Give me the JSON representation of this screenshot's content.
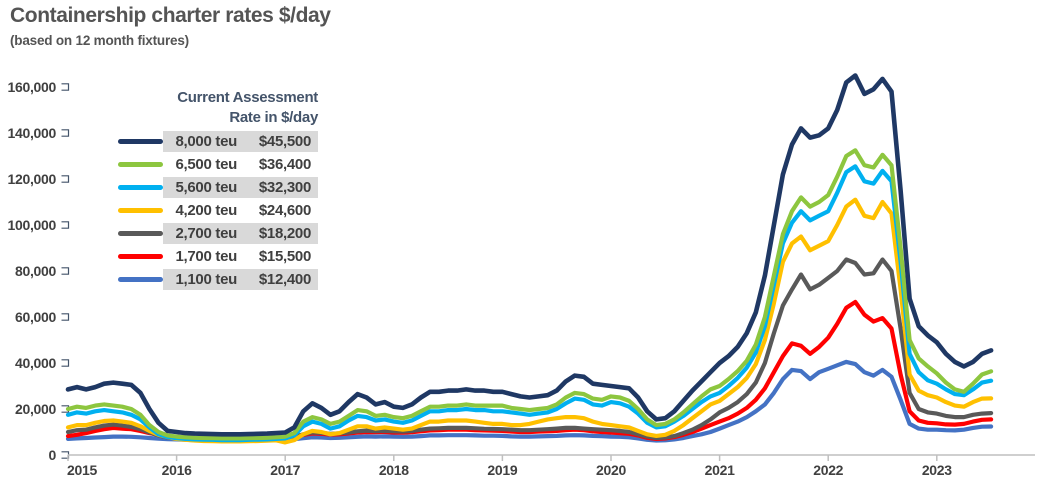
{
  "header": {
    "title": "Containership charter rates $/day",
    "subtitle": "(based on 12 month fixtures)"
  },
  "legend": {
    "header_line1": "Current Assessment",
    "header_line2": "Rate in $/day",
    "rows": [
      {
        "label": "8,000 teu",
        "value": "$45,500",
        "color": "#1F3864",
        "striped": true
      },
      {
        "label": "6,500 teu",
        "value": "$36,400",
        "color": "#8DC63F",
        "striped": false
      },
      {
        "label": "5,600 teu",
        "value": "$32,300",
        "color": "#00B0F0",
        "striped": true
      },
      {
        "label": "4,200 teu",
        "value": "$24,600",
        "color": "#FFC000",
        "striped": false
      },
      {
        "label": "2,700 teu",
        "value": "$18,200",
        "color": "#595959",
        "striped": true
      },
      {
        "label": "1,700 teu",
        "value": "$15,500",
        "color": "#FF0000",
        "striped": false
      },
      {
        "label": "1,100 teu",
        "value": "$12,400",
        "color": "#4472C4",
        "striped": true
      }
    ]
  },
  "colors": {
    "axis_line": "#BFBFBF",
    "tick_label": "#404040",
    "tick_bracket": "#44546A",
    "title_text": "#545454",
    "stripe": "#D9D9D9"
  },
  "chart_data": {
    "type": "line",
    "title": "Containership charter rates $/day",
    "subtitle": "(based on 12 month fixtures)",
    "x_unit": "month",
    "x_start_year": 2015,
    "x_end": "2023-07",
    "x_tick_labels": [
      "2015",
      "2016",
      "2017",
      "2018",
      "2019",
      "2020",
      "2021",
      "2022",
      "2023"
    ],
    "ylim": [
      0,
      160000
    ],
    "y_tick_step": 20000,
    "y_tick_labels": [
      "0",
      "20,000",
      "40,000",
      "60,000",
      "80,000",
      "100,000",
      "120,000",
      "140,000",
      "160,000"
    ],
    "grid": false,
    "legend_position": "top-left-inside",
    "series": [
      {
        "name": "8,000 teu",
        "current_assessment": 45500,
        "color": "#1F3864",
        "values": [
          28500,
          29500,
          28500,
          29500,
          31000,
          31500,
          31000,
          30500,
          27000,
          20000,
          14000,
          10500,
          10000,
          9500,
          9300,
          9200,
          9100,
          9000,
          9000,
          9000,
          9100,
          9200,
          9300,
          9500,
          9800,
          12000,
          19000,
          22500,
          20500,
          17500,
          19000,
          23000,
          26500,
          25000,
          22000,
          23000,
          21000,
          20500,
          22000,
          25000,
          27500,
          27500,
          28000,
          28000,
          28500,
          28000,
          28000,
          27500,
          27500,
          26500,
          25500,
          25000,
          25500,
          26000,
          28000,
          32000,
          34500,
          34000,
          31000,
          30500,
          30000,
          29500,
          29000,
          25000,
          19000,
          15500,
          16000,
          19000,
          23500,
          28000,
          32000,
          36000,
          40000,
          43000,
          47000,
          53000,
          62000,
          78000,
          100000,
          122000,
          135000,
          142000,
          138000,
          139000,
          142000,
          150000,
          162000,
          165000,
          157000,
          159000,
          163500,
          158000,
          115000,
          68000,
          56000,
          52000,
          49000,
          44000,
          40500,
          38500,
          40500,
          44000,
          45500
        ]
      },
      {
        "name": "6,500 teu",
        "current_assessment": 36400,
        "color": "#8DC63F",
        "values": [
          20000,
          21000,
          20500,
          21500,
          22000,
          21500,
          21000,
          20000,
          17500,
          13000,
          10000,
          8500,
          8000,
          7700,
          7500,
          7400,
          7300,
          7200,
          7200,
          7200,
          7300,
          7400,
          7500,
          7700,
          8000,
          9500,
          14500,
          16500,
          15500,
          13500,
          14500,
          17000,
          19500,
          19000,
          17000,
          17500,
          16500,
          16000,
          17000,
          19000,
          21000,
          21000,
          21500,
          21500,
          22000,
          21500,
          21500,
          21500,
          21500,
          20500,
          20000,
          19500,
          20000,
          20500,
          22000,
          25000,
          27000,
          26500,
          24500,
          24000,
          25500,
          25000,
          23500,
          20000,
          15500,
          13000,
          13500,
          15500,
          18500,
          22000,
          25500,
          28500,
          30000,
          33000,
          36500,
          41000,
          48000,
          60000,
          78000,
          96000,
          106000,
          112000,
          108000,
          110000,
          113000,
          121000,
          130000,
          132500,
          126000,
          125000,
          130500,
          126000,
          90000,
          50000,
          42000,
          38500,
          35500,
          31500,
          28500,
          27500,
          31000,
          35000,
          36400
        ]
      },
      {
        "name": "5,600 teu",
        "current_assessment": 32300,
        "color": "#00B0F0",
        "values": [
          17500,
          18500,
          18000,
          19000,
          19500,
          19000,
          18500,
          17500,
          15500,
          12000,
          9000,
          7800,
          7300,
          7000,
          6800,
          6700,
          6600,
          6500,
          6500,
          6500,
          6600,
          6700,
          6800,
          7000,
          7200,
          8500,
          12500,
          14500,
          13500,
          11500,
          12500,
          15000,
          17000,
          16500,
          15000,
          15500,
          14500,
          14000,
          15000,
          17000,
          19000,
          19000,
          19500,
          19500,
          20000,
          19500,
          19500,
          19000,
          19000,
          18500,
          18000,
          17500,
          18000,
          18500,
          20000,
          22500,
          24500,
          24000,
          22000,
          21500,
          23000,
          22500,
          21000,
          18000,
          14000,
          12000,
          12500,
          14500,
          17000,
          20000,
          23000,
          25500,
          27000,
          30000,
          33500,
          38000,
          44500,
          56000,
          74000,
          92000,
          101000,
          106000,
          102000,
          104000,
          106000,
          114000,
          123000,
          125500,
          119000,
          118000,
          123500,
          119000,
          84000,
          44000,
          36000,
          32500,
          31000,
          28500,
          26500,
          26000,
          28500,
          31500,
          32300
        ]
      },
      {
        "name": "4,200 teu",
        "current_assessment": 24600,
        "color": "#FFC000",
        "values": [
          12000,
          13000,
          13000,
          14000,
          14800,
          15000,
          14500,
          14000,
          12500,
          10500,
          8800,
          7800,
          7000,
          6600,
          6300,
          6100,
          6000,
          5900,
          5900,
          5900,
          6000,
          6100,
          6200,
          6400,
          5500,
          6500,
          9000,
          10500,
          10000,
          9000,
          9500,
          11000,
          12500,
          12500,
          11500,
          12000,
          11500,
          11000,
          11500,
          13000,
          14500,
          14500,
          15000,
          15000,
          15000,
          14500,
          14000,
          13500,
          13500,
          13000,
          13000,
          13500,
          14500,
          15500,
          16000,
          16500,
          16500,
          16000,
          14500,
          13500,
          13000,
          12500,
          12000,
          10500,
          9000,
          8300,
          8800,
          10500,
          13000,
          16000,
          19000,
          22000,
          23500,
          26500,
          29500,
          33500,
          39500,
          50000,
          66000,
          84000,
          92000,
          95000,
          89000,
          91000,
          93000,
          100000,
          108000,
          111000,
          104000,
          103000,
          110000,
          105000,
          72000,
          35000,
          28000,
          26000,
          25000,
          23000,
          21500,
          21000,
          23000,
          24500,
          24600
        ]
      },
      {
        "name": "2,700 teu",
        "current_assessment": 18200,
        "color": "#595959",
        "values": [
          10000,
          10800,
          11000,
          12000,
          12800,
          13200,
          12800,
          12200,
          11200,
          9800,
          8500,
          7600,
          7200,
          7000,
          6800,
          6700,
          6600,
          6500,
          6500,
          6500,
          6600,
          6700,
          6800,
          7000,
          7300,
          7800,
          9000,
          9800,
          9600,
          9200,
          9400,
          9800,
          10300,
          10600,
          10400,
          10500,
          10300,
          10200,
          10500,
          11000,
          11500,
          11600,
          11800,
          11800,
          11800,
          11600,
          11400,
          11300,
          11200,
          11000,
          10800,
          10800,
          11000,
          11200,
          11500,
          11800,
          11800,
          11500,
          11200,
          11000,
          10800,
          10500,
          10000,
          9000,
          8000,
          7400,
          7600,
          8200,
          9500,
          11000,
          13000,
          15500,
          18500,
          20500,
          23000,
          26500,
          31500,
          40000,
          53000,
          65000,
          72000,
          78500,
          72000,
          74000,
          77000,
          80000,
          85000,
          83500,
          78500,
          79000,
          85000,
          80000,
          55000,
          27000,
          20000,
          18500,
          18000,
          17000,
          16500,
          16500,
          17500,
          18000,
          18200
        ]
      },
      {
        "name": "1,700 teu",
        "current_assessment": 15500,
        "color": "#FF0000",
        "values": [
          8200,
          8800,
          9500,
          10500,
          11200,
          11800,
          11500,
          11200,
          10500,
          9500,
          8800,
          8200,
          7900,
          7600,
          7400,
          7300,
          7200,
          7200,
          7200,
          7200,
          7300,
          7300,
          7400,
          7500,
          7700,
          8000,
          8800,
          9400,
          9200,
          8900,
          9000,
          9400,
          9800,
          10000,
          9900,
          10000,
          9800,
          9700,
          9900,
          10300,
          10700,
          10800,
          11000,
          11000,
          11000,
          10800,
          10700,
          10600,
          10500,
          10200,
          10000,
          10000,
          10200,
          10300,
          10500,
          10800,
          11000,
          10800,
          10300,
          10000,
          9800,
          9500,
          9200,
          8500,
          7500,
          7000,
          7200,
          7800,
          8800,
          10000,
          11500,
          13000,
          14500,
          16000,
          18000,
          20500,
          24000,
          29000,
          36000,
          43000,
          48500,
          47500,
          44000,
          47000,
          51000,
          57000,
          64000,
          66500,
          61000,
          58000,
          59500,
          55000,
          35000,
          19000,
          15000,
          14000,
          13800,
          13300,
          13200,
          13500,
          14500,
          15300,
          15500
        ]
      },
      {
        "name": "1,100 teu",
        "current_assessment": 12400,
        "color": "#4472C4",
        "values": [
          7000,
          7200,
          7400,
          7600,
          7800,
          8000,
          8000,
          7900,
          7700,
          7400,
          7100,
          6900,
          6800,
          6600,
          6500,
          6400,
          6400,
          6300,
          6300,
          6300,
          6400,
          6400,
          6500,
          6600,
          6700,
          6900,
          7300,
          7700,
          7600,
          7400,
          7500,
          7700,
          7900,
          8100,
          8000,
          8100,
          8000,
          7900,
          8000,
          8200,
          8500,
          8500,
          8600,
          8600,
          8600,
          8500,
          8400,
          8400,
          8300,
          8100,
          8000,
          8000,
          8100,
          8200,
          8300,
          8500,
          8600,
          8500,
          8300,
          8200,
          8000,
          7900,
          7700,
          7200,
          6600,
          6300,
          6400,
          6800,
          7400,
          8200,
          9000,
          10000,
          11500,
          13000,
          14500,
          16500,
          19000,
          22000,
          27000,
          33000,
          37000,
          36500,
          33000,
          36000,
          37500,
          39000,
          40500,
          39500,
          36000,
          34500,
          37000,
          34000,
          24000,
          13500,
          11500,
          11000,
          11000,
          10800,
          10700,
          11000,
          11800,
          12300,
          12400
        ]
      }
    ]
  }
}
